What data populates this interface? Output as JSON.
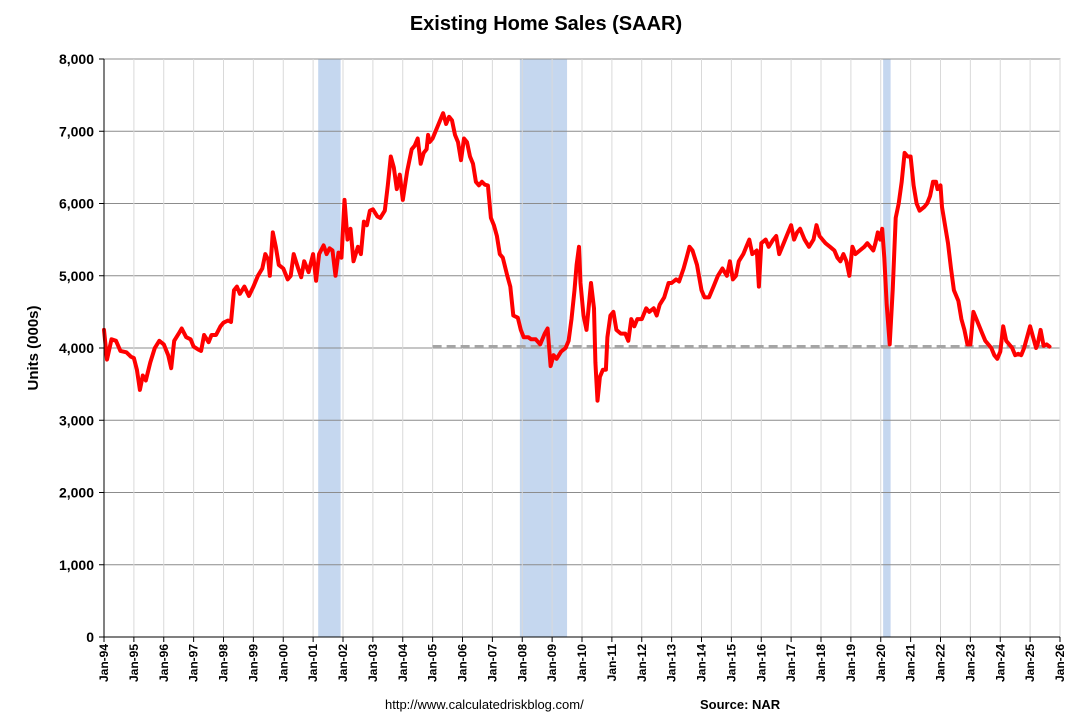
{
  "chart_data": {
    "type": "line",
    "title": "Existing Home Sales (SAAR)",
    "ylabel": "Units (000s)",
    "xlabel": "",
    "ylim": [
      0,
      8000
    ],
    "yticks": [
      0,
      1000,
      2000,
      3000,
      4000,
      5000,
      6000,
      7000,
      8000
    ],
    "ytick_labels": [
      "0",
      "1,000",
      "2,000",
      "3,000",
      "4,000",
      "5,000",
      "6,000",
      "7,000",
      "8,000"
    ],
    "xlim": [
      1994.0,
      2026.0
    ],
    "xticks": [
      1994,
      1995,
      1996,
      1997,
      1998,
      1999,
      2000,
      2001,
      2002,
      2003,
      2004,
      2005,
      2006,
      2007,
      2008,
      2009,
      2010,
      2011,
      2012,
      2013,
      2014,
      2015,
      2016,
      2017,
      2018,
      2019,
      2020,
      2021,
      2022,
      2023,
      2024,
      2025,
      2026
    ],
    "xtick_labels": [
      "Jan-94",
      "Jan-95",
      "Jan-96",
      "Jan-97",
      "Jan-98",
      "Jan-99",
      "Jan-00",
      "Jan-01",
      "Jan-02",
      "Jan-03",
      "Jan-04",
      "Jan-05",
      "Jan-06",
      "Jan-07",
      "Jan-08",
      "Jan-09",
      "Jan-10",
      "Jan-11",
      "Jan-12",
      "Jan-13",
      "Jan-14",
      "Jan-15",
      "Jan-16",
      "Jan-17",
      "Jan-18",
      "Jan-19",
      "Jan-20",
      "Jan-21",
      "Jan-22",
      "Jan-23",
      "Jan-24",
      "Jan-25",
      "Jan-26"
    ],
    "grid": true,
    "recessions": [
      [
        2001.17,
        2001.92
      ],
      [
        2007.92,
        2009.5
      ],
      [
        2020.08,
        2020.33
      ]
    ],
    "reference_line": {
      "value": 4020,
      "x_start": 2005.0,
      "x_end": 2025.5
    },
    "series": [
      {
        "color": "#ff0000",
        "points": [
          [
            1994.0,
            4250
          ],
          [
            1994.1,
            3840
          ],
          [
            1994.25,
            4120
          ],
          [
            1994.4,
            4100
          ],
          [
            1994.55,
            3960
          ],
          [
            1994.75,
            3940
          ],
          [
            1994.9,
            3880
          ],
          [
            1995.0,
            3860
          ],
          [
            1995.1,
            3700
          ],
          [
            1995.2,
            3420
          ],
          [
            1995.3,
            3620
          ],
          [
            1995.4,
            3550
          ],
          [
            1995.55,
            3800
          ],
          [
            1995.7,
            4000
          ],
          [
            1995.85,
            4100
          ],
          [
            1996.0,
            4050
          ],
          [
            1996.15,
            3900
          ],
          [
            1996.25,
            3720
          ],
          [
            1996.35,
            4100
          ],
          [
            1996.5,
            4200
          ],
          [
            1996.6,
            4270
          ],
          [
            1996.75,
            4150
          ],
          [
            1996.9,
            4120
          ],
          [
            1997.0,
            4020
          ],
          [
            1997.15,
            3980
          ],
          [
            1997.25,
            3960
          ],
          [
            1997.35,
            4180
          ],
          [
            1997.5,
            4080
          ],
          [
            1997.6,
            4180
          ],
          [
            1997.75,
            4180
          ],
          [
            1997.9,
            4300
          ],
          [
            1998.0,
            4350
          ],
          [
            1998.15,
            4380
          ],
          [
            1998.25,
            4360
          ],
          [
            1998.35,
            4800
          ],
          [
            1998.45,
            4850
          ],
          [
            1998.55,
            4750
          ],
          [
            1998.7,
            4850
          ],
          [
            1998.85,
            4720
          ],
          [
            1999.0,
            4850
          ],
          [
            1999.15,
            5000
          ],
          [
            1999.3,
            5100
          ],
          [
            1999.4,
            5300
          ],
          [
            1999.5,
            5220
          ],
          [
            1999.55,
            5000
          ],
          [
            1999.65,
            5600
          ],
          [
            1999.75,
            5400
          ],
          [
            1999.85,
            5150
          ],
          [
            2000.0,
            5100
          ],
          [
            2000.15,
            4950
          ],
          [
            2000.25,
            5000
          ],
          [
            2000.35,
            5300
          ],
          [
            2000.5,
            5100
          ],
          [
            2000.6,
            4980
          ],
          [
            2000.7,
            5200
          ],
          [
            2000.85,
            5050
          ],
          [
            2001.0,
            5300
          ],
          [
            2001.1,
            4930
          ],
          [
            2001.2,
            5300
          ],
          [
            2001.35,
            5420
          ],
          [
            2001.45,
            5300
          ],
          [
            2001.55,
            5380
          ],
          [
            2001.65,
            5350
          ],
          [
            2001.75,
            5000
          ],
          [
            2001.85,
            5320
          ],
          [
            2001.95,
            5250
          ],
          [
            2002.05,
            6050
          ],
          [
            2002.15,
            5500
          ],
          [
            2002.25,
            5650
          ],
          [
            2002.35,
            5200
          ],
          [
            2002.5,
            5400
          ],
          [
            2002.6,
            5300
          ],
          [
            2002.7,
            5750
          ],
          [
            2002.8,
            5700
          ],
          [
            2002.9,
            5900
          ],
          [
            2003.0,
            5920
          ],
          [
            2003.15,
            5820
          ],
          [
            2003.25,
            5800
          ],
          [
            2003.4,
            5900
          ],
          [
            2003.5,
            6250
          ],
          [
            2003.6,
            6650
          ],
          [
            2003.7,
            6500
          ],
          [
            2003.8,
            6200
          ],
          [
            2003.9,
            6400
          ],
          [
            2004.0,
            6050
          ],
          [
            2004.15,
            6450
          ],
          [
            2004.3,
            6750
          ],
          [
            2004.4,
            6800
          ],
          [
            2004.5,
            6900
          ],
          [
            2004.6,
            6550
          ],
          [
            2004.7,
            6700
          ],
          [
            2004.8,
            6750
          ],
          [
            2004.85,
            6950
          ],
          [
            2004.9,
            6850
          ],
          [
            2005.0,
            6900
          ],
          [
            2005.15,
            7050
          ],
          [
            2005.25,
            7150
          ],
          [
            2005.35,
            7250
          ],
          [
            2005.45,
            7100
          ],
          [
            2005.55,
            7200
          ],
          [
            2005.65,
            7150
          ],
          [
            2005.75,
            6950
          ],
          [
            2005.85,
            6850
          ],
          [
            2005.95,
            6600
          ],
          [
            2006.05,
            6900
          ],
          [
            2006.15,
            6850
          ],
          [
            2006.25,
            6650
          ],
          [
            2006.35,
            6550
          ],
          [
            2006.45,
            6300
          ],
          [
            2006.55,
            6250
          ],
          [
            2006.65,
            6300
          ],
          [
            2006.75,
            6260
          ],
          [
            2006.85,
            6250
          ],
          [
            2006.95,
            5800
          ],
          [
            2007.05,
            5700
          ],
          [
            2007.15,
            5550
          ],
          [
            2007.25,
            5300
          ],
          [
            2007.35,
            5250
          ],
          [
            2007.5,
            5000
          ],
          [
            2007.6,
            4850
          ],
          [
            2007.7,
            4450
          ],
          [
            2007.85,
            4420
          ],
          [
            2007.95,
            4250
          ],
          [
            2008.05,
            4150
          ],
          [
            2008.2,
            4150
          ],
          [
            2008.3,
            4120
          ],
          [
            2008.45,
            4120
          ],
          [
            2008.6,
            4050
          ],
          [
            2008.75,
            4200
          ],
          [
            2008.85,
            4270
          ],
          [
            2008.95,
            3750
          ],
          [
            2009.05,
            3900
          ],
          [
            2009.15,
            3850
          ],
          [
            2009.3,
            3950
          ],
          [
            2009.45,
            4000
          ],
          [
            2009.55,
            4100
          ],
          [
            2009.65,
            4400
          ],
          [
            2009.75,
            4800
          ],
          [
            2009.82,
            5150
          ],
          [
            2009.9,
            5400
          ],
          [
            2009.95,
            4900
          ],
          [
            2010.05,
            4450
          ],
          [
            2010.15,
            4250
          ],
          [
            2010.3,
            4900
          ],
          [
            2010.4,
            4550
          ],
          [
            2010.45,
            3800
          ],
          [
            2010.52,
            3270
          ],
          [
            2010.6,
            3600
          ],
          [
            2010.7,
            3700
          ],
          [
            2010.8,
            3700
          ],
          [
            2010.85,
            4150
          ],
          [
            2010.95,
            4450
          ],
          [
            2011.05,
            4500
          ],
          [
            2011.15,
            4250
          ],
          [
            2011.3,
            4200
          ],
          [
            2011.45,
            4200
          ],
          [
            2011.55,
            4100
          ],
          [
            2011.65,
            4400
          ],
          [
            2011.75,
            4300
          ],
          [
            2011.85,
            4400
          ],
          [
            2012.0,
            4400
          ],
          [
            2012.15,
            4550
          ],
          [
            2012.25,
            4500
          ],
          [
            2012.4,
            4550
          ],
          [
            2012.5,
            4450
          ],
          [
            2012.6,
            4600
          ],
          [
            2012.75,
            4700
          ],
          [
            2012.9,
            4900
          ],
          [
            2013.0,
            4900
          ],
          [
            2013.15,
            4950
          ],
          [
            2013.25,
            4920
          ],
          [
            2013.4,
            5100
          ],
          [
            2013.5,
            5250
          ],
          [
            2013.6,
            5400
          ],
          [
            2013.7,
            5350
          ],
          [
            2013.85,
            5150
          ],
          [
            2014.0,
            4800
          ],
          [
            2014.1,
            4700
          ],
          [
            2014.25,
            4700
          ],
          [
            2014.4,
            4850
          ],
          [
            2014.55,
            5000
          ],
          [
            2014.7,
            5100
          ],
          [
            2014.85,
            5000
          ],
          [
            2014.95,
            5200
          ],
          [
            2015.05,
            4950
          ],
          [
            2015.15,
            5000
          ],
          [
            2015.25,
            5200
          ],
          [
            2015.4,
            5300
          ],
          [
            2015.5,
            5400
          ],
          [
            2015.6,
            5500
          ],
          [
            2015.7,
            5300
          ],
          [
            2015.85,
            5350
          ],
          [
            2015.92,
            4850
          ],
          [
            2016.0,
            5450
          ],
          [
            2016.15,
            5500
          ],
          [
            2016.25,
            5400
          ],
          [
            2016.4,
            5500
          ],
          [
            2016.5,
            5550
          ],
          [
            2016.6,
            5300
          ],
          [
            2016.75,
            5450
          ],
          [
            2016.9,
            5600
          ],
          [
            2017.0,
            5700
          ],
          [
            2017.1,
            5500
          ],
          [
            2017.2,
            5600
          ],
          [
            2017.3,
            5650
          ],
          [
            2017.45,
            5500
          ],
          [
            2017.6,
            5400
          ],
          [
            2017.75,
            5500
          ],
          [
            2017.85,
            5700
          ],
          [
            2017.95,
            5550
          ],
          [
            2018.05,
            5500
          ],
          [
            2018.15,
            5450
          ],
          [
            2018.3,
            5400
          ],
          [
            2018.45,
            5350
          ],
          [
            2018.55,
            5250
          ],
          [
            2018.65,
            5200
          ],
          [
            2018.75,
            5300
          ],
          [
            2018.85,
            5200
          ],
          [
            2018.95,
            5000
          ],
          [
            2019.05,
            5400
          ],
          [
            2019.15,
            5300
          ],
          [
            2019.3,
            5350
          ],
          [
            2019.45,
            5400
          ],
          [
            2019.55,
            5450
          ],
          [
            2019.65,
            5400
          ],
          [
            2019.75,
            5350
          ],
          [
            2019.82,
            5450
          ],
          [
            2019.9,
            5600
          ],
          [
            2019.98,
            5500
          ],
          [
            2020.05,
            5650
          ],
          [
            2020.12,
            5250
          ],
          [
            2020.2,
            4600
          ],
          [
            2020.3,
            4050
          ],
          [
            2020.4,
            4800
          ],
          [
            2020.5,
            5800
          ],
          [
            2020.6,
            6000
          ],
          [
            2020.7,
            6300
          ],
          [
            2020.8,
            6700
          ],
          [
            2020.9,
            6650
          ],
          [
            2021.0,
            6650
          ],
          [
            2021.1,
            6250
          ],
          [
            2021.2,
            6000
          ],
          [
            2021.3,
            5900
          ],
          [
            2021.45,
            5950
          ],
          [
            2021.55,
            6000
          ],
          [
            2021.65,
            6100
          ],
          [
            2021.75,
            6300
          ],
          [
            2021.85,
            6300
          ],
          [
            2021.9,
            6200
          ],
          [
            2022.0,
            6250
          ],
          [
            2022.05,
            5950
          ],
          [
            2022.15,
            5700
          ],
          [
            2022.25,
            5450
          ],
          [
            2022.35,
            5100
          ],
          [
            2022.45,
            4800
          ],
          [
            2022.6,
            4650
          ],
          [
            2022.7,
            4400
          ],
          [
            2022.8,
            4250
          ],
          [
            2022.9,
            4050
          ],
          [
            2023.0,
            4050
          ],
          [
            2023.1,
            4500
          ],
          [
            2023.2,
            4400
          ],
          [
            2023.3,
            4300
          ],
          [
            2023.4,
            4200
          ],
          [
            2023.5,
            4100
          ],
          [
            2023.6,
            4050
          ],
          [
            2023.7,
            4000
          ],
          [
            2023.8,
            3900
          ],
          [
            2023.9,
            3850
          ],
          [
            2024.0,
            3950
          ],
          [
            2024.1,
            4300
          ],
          [
            2024.2,
            4100
          ],
          [
            2024.3,
            4050
          ],
          [
            2024.4,
            4000
          ],
          [
            2024.5,
            3900
          ],
          [
            2024.6,
            3920
          ],
          [
            2024.7,
            3900
          ],
          [
            2024.8,
            4000
          ],
          [
            2024.9,
            4150
          ],
          [
            2025.0,
            4300
          ],
          [
            2025.1,
            4150
          ],
          [
            2025.2,
            4000
          ],
          [
            2025.25,
            4050
          ],
          [
            2025.35,
            4250
          ],
          [
            2025.45,
            4030
          ],
          [
            2025.55,
            4050
          ],
          [
            2025.65,
            4020
          ]
        ]
      }
    ],
    "recession_color": "#c5d7ef",
    "reference_color": "#a5a5a5"
  },
  "footer": {
    "url": "http://www.calculatedriskblog.com/",
    "source": "Source: NAR"
  }
}
